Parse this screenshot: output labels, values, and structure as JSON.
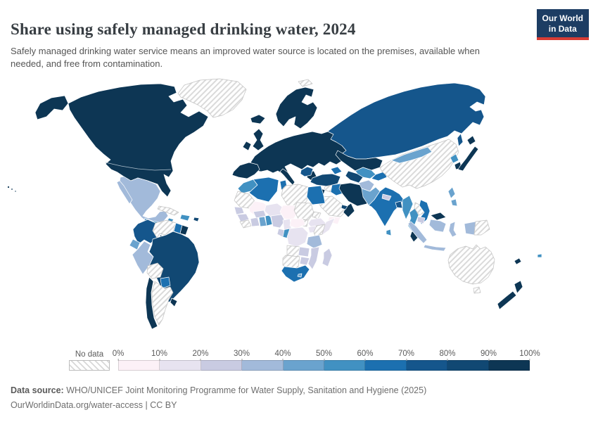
{
  "header": {
    "title": "Share using safely managed drinking water, 2024",
    "subtitle": "Safely managed drinking water service means an improved water source is located on the premises, available when needed, and free from contamination.",
    "logo": {
      "line1": "Our World",
      "line2": "in Data",
      "bg_color": "#1d3d63",
      "accent_color": "#d73c34"
    }
  },
  "chart_data": {
    "type": "heatmap",
    "variant": "choropleth-world-map",
    "title": "Share using safely managed drinking water, 2024",
    "year": "2024",
    "unit": "%",
    "legend": {
      "no_data_label": "No data",
      "no_data_pattern": "diagonal-hatch",
      "tick_labels": [
        "0%",
        "10%",
        "20%",
        "30%",
        "40%",
        "50%",
        "60%",
        "70%",
        "80%",
        "90%",
        "100%"
      ],
      "position": "bottom"
    },
    "bins": [
      {
        "range": "0-10%",
        "color": "#fcf1f7"
      },
      {
        "range": "10-20%",
        "color": "#e7e3f0"
      },
      {
        "range": "20-30%",
        "color": "#c9cbe2"
      },
      {
        "range": "30-40%",
        "color": "#a2bada"
      },
      {
        "range": "40-50%",
        "color": "#6aa3ce"
      },
      {
        "range": "50-60%",
        "color": "#4191c2"
      },
      {
        "range": "60-70%",
        "color": "#1c70b0"
      },
      {
        "range": "70-80%",
        "color": "#15568c"
      },
      {
        "range": "80-90%",
        "color": "#114873"
      },
      {
        "range": "90-100%",
        "color": "#0d3654"
      }
    ],
    "regions": {
      "greenland": "no-data",
      "iceland": 9,
      "alaska": 9,
      "us-canada": 9,
      "hawaii": 9,
      "mexico": 3,
      "guatemala": 4,
      "honduras": 5,
      "nicaragua": 5,
      "costa-rica": 9,
      "panama": 6,
      "cuba": "no-data",
      "jamaica": 5,
      "hispaniola": 5,
      "puerto-rico": 8,
      "colombia": 7,
      "venezuela": "no-data",
      "guyana": 6,
      "suriname": 9,
      "ecuador": 4,
      "peru": 3,
      "brazil": 8,
      "bolivia": "no-data",
      "paraguay": 6,
      "argentina": "no-data",
      "chile": 9,
      "uruguay": 9,
      "scandinavia": 9,
      "europe": 9,
      "balkans": 7,
      "uk": 9,
      "ireland": 9,
      "svalbard": "no-data",
      "russia": 7,
      "kazakhstan": 9,
      "caucasus": 6,
      "turkey": 8,
      "syria": "no-data",
      "jordan-israel": 9,
      "iraq": 6,
      "saudi-arabia": "no-data",
      "yemen": 0,
      "oman": 9,
      "uae": 8,
      "iran": 9,
      "turkmenistan": 8,
      "uzbekistan": 5,
      "kyrgyzstan-tajikistan": 6,
      "afghanistan": 3,
      "pakistan": 4,
      "india": 6,
      "nepal": 2,
      "bangladesh": 7,
      "sri-lanka": 5,
      "myanmar": 5,
      "thailand": 5,
      "laos": "no-data",
      "vietnam": 6,
      "cambodia": 2,
      "malaysia": 9,
      "china": "no-data",
      "mongolia": 4,
      "north-korea": 5,
      "south-korea": 9,
      "japan": 9,
      "philippines": 4,
      "indonesia": 3,
      "papua-new-guinea": "no-data",
      "australia": "no-data",
      "new-zealand": 9,
      "new-caledonia": 9,
      "fiji": 5,
      "morocco": 5,
      "algeria": 6,
      "tunisia": 6,
      "libya": "no-data",
      "egypt": 6,
      "western-sahara-mauritania": "no-data",
      "mali": 0,
      "senegal": 2,
      "guinea": 2,
      "liberia-sierra-leone": "no-data",
      "cote-divoire": 2,
      "ghana": 4,
      "togo-benin": 5,
      "burkina-faso": 2,
      "niger": 1,
      "nigeria": 2,
      "chad": 0,
      "sudan": "no-data",
      "south-sudan": "no-data",
      "eritrea": "no-data",
      "ethiopia": 1,
      "somalia": 1,
      "cameroon": 1,
      "central-african-republic": 0,
      "congo": 5,
      "gabon": 2,
      "drc": 1,
      "uganda": 1,
      "kenya": "no-data",
      "tanzania": 3,
      "angola": "no-data",
      "zambia": 2,
      "mozambique": 2,
      "zimbabwe": 2,
      "namibia-botswana": "no-data",
      "south-africa": 6,
      "lesotho": 4,
      "madagascar": 2
    }
  },
  "footer": {
    "source_label": "Data source:",
    "source": "WHO/UNICEF Joint Monitoring Programme for Water Supply, Sanitation and Hygiene (2025)",
    "link": "OurWorldinData.org/water-access | CC BY"
  }
}
